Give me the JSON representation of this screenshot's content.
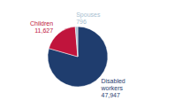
{
  "chart_data": {
    "type": "pie",
    "categories": [
      "Disabled workers",
      "Children",
      "Spouses"
    ],
    "values": [
      47947,
      11627,
      796
    ],
    "value_labels": [
      "47,947",
      "11,627",
      "796"
    ],
    "colors": [
      "#1F3D6E",
      "#C0143C",
      "#A8C0D0"
    ],
    "data_labels": true
  }
}
